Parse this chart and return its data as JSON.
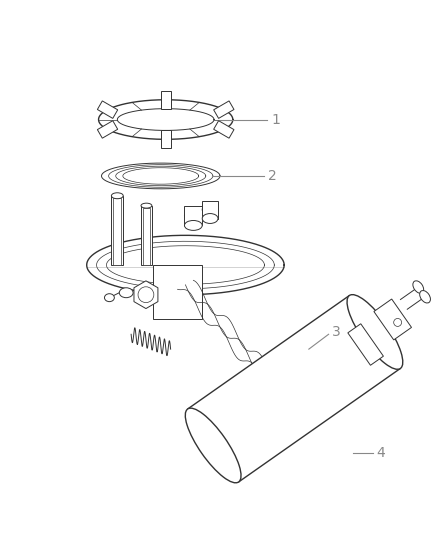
{
  "background_color": "#ffffff",
  "label_color": "#888888",
  "line_color": "#333333",
  "fig_width": 4.38,
  "fig_height": 5.33,
  "dpi": 100
}
